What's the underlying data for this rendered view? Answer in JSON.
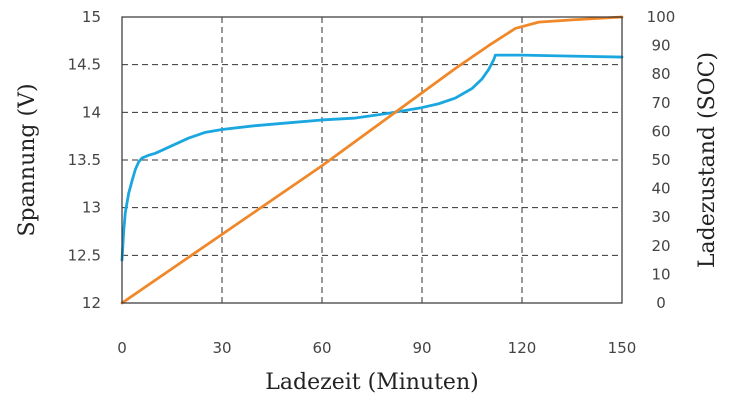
{
  "chart_data": {
    "type": "line",
    "xlabel": "Ladezeit (Minuten)",
    "ylabel_left": "Spannung (V)",
    "ylabel_right": "Ladezustand (SOC)",
    "xlim": [
      0,
      150
    ],
    "ylim_left": [
      12,
      15
    ],
    "ylim_right": [
      0,
      100
    ],
    "x_ticks": [
      "0",
      "30",
      "60",
      "90",
      "120",
      "150"
    ],
    "y_left_ticks": [
      "12",
      "12.5",
      "13",
      "13.5",
      "14",
      "14.5",
      "15"
    ],
    "y_right_ticks": [
      "0",
      "10",
      "20",
      "30",
      "40",
      "50",
      "60",
      "70",
      "80",
      "90",
      "100"
    ],
    "grid": true,
    "series": [
      {
        "axis": "left",
        "color": "#1aa7e0",
        "points": [
          [
            0,
            12.45
          ],
          [
            0.5,
            12.75
          ],
          [
            1,
            12.95
          ],
          [
            2,
            13.15
          ],
          [
            3,
            13.28
          ],
          [
            4,
            13.4
          ],
          [
            5,
            13.48
          ],
          [
            6,
            13.52
          ],
          [
            8,
            13.55
          ],
          [
            10,
            13.57
          ],
          [
            15,
            13.65
          ],
          [
            20,
            13.73
          ],
          [
            25,
            13.79
          ],
          [
            30,
            13.82
          ],
          [
            40,
            13.86
          ],
          [
            50,
            13.89
          ],
          [
            60,
            13.92
          ],
          [
            70,
            13.94
          ],
          [
            80,
            13.99
          ],
          [
            90,
            14.05
          ],
          [
            95,
            14.09
          ],
          [
            100,
            14.15
          ],
          [
            105,
            14.25
          ],
          [
            108,
            14.35
          ],
          [
            110,
            14.45
          ],
          [
            111.5,
            14.55
          ],
          [
            112,
            14.6
          ],
          [
            120,
            14.6
          ],
          [
            135,
            14.59
          ],
          [
            150,
            14.58
          ]
        ]
      },
      {
        "axis": "right",
        "color": "#f0882a",
        "points": [
          [
            0,
            0
          ],
          [
            20,
            16
          ],
          [
            40,
            32
          ],
          [
            60,
            48
          ],
          [
            80,
            65
          ],
          [
            100,
            82
          ],
          [
            110,
            90
          ],
          [
            118,
            96
          ],
          [
            125,
            98.2
          ],
          [
            135,
            99
          ],
          [
            150,
            100
          ]
        ]
      }
    ]
  }
}
